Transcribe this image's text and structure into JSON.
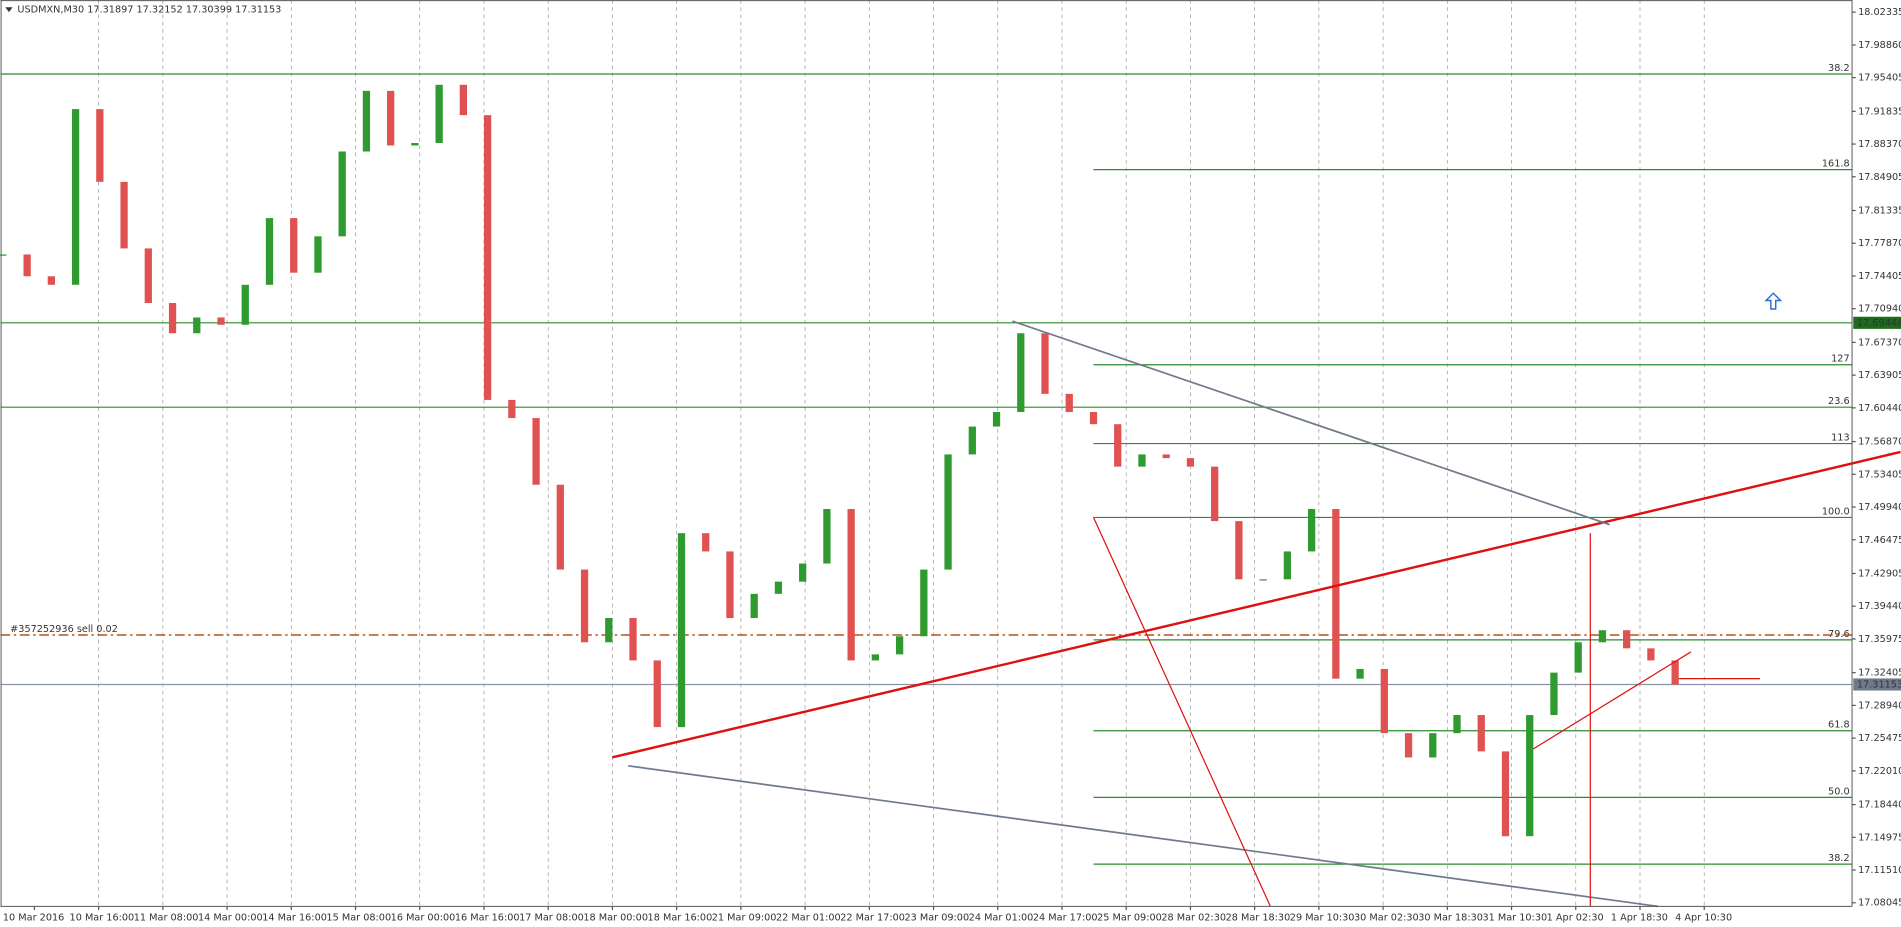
{
  "chart_data": {
    "type": "candlestick",
    "title": "USDMXN,M30  17.31897 17.32152 17.30399 17.31153",
    "up_color": "#2f9a2f",
    "down_color": "#e05252",
    "values": [
      17.7668,
      17.7437,
      17.7347,
      17.9207,
      17.8437,
      17.7732,
      17.7154,
      17.6834,
      17.7001,
      17.6924,
      17.7347,
      17.8053,
      17.7475,
      17.786,
      17.8758,
      17.94,
      17.8822,
      17.8848,
      17.9464,
      17.9143,
      17.6128,
      17.5936,
      17.523,
      17.4332,
      17.3562,
      17.3819,
      17.337,
      17.2664,
      17.4717,
      17.4524,
      17.3819,
      17.4075,
      17.4204,
      17.4396,
      17.4973,
      17.337,
      17.3434,
      17.3626,
      17.4332,
      17.5551,
      17.5846,
      17.6,
      17.6834,
      17.6192,
      17.6,
      17.5871,
      17.5422,
      17.5551,
      17.5512,
      17.5422,
      17.4845,
      17.4229,
      17.4229,
      17.4524,
      17.4973,
      17.3177,
      17.328,
      17.26,
      17.2343,
      17.26,
      17.2792,
      17.2407,
      17.1509,
      17.2792,
      17.3241,
      17.3562,
      17.369,
      17.3498,
      17.337,
      17.3115
    ],
    "x_axis_labels": [
      "10 Mar 2016",
      "10 Mar 16:00",
      "11 Mar 08:00",
      "14 Mar 00:00",
      "14 Mar 16:00",
      "15 Mar 08:00",
      "16 Mar 00:00",
      "16 Mar 16:00",
      "17 Mar 08:00",
      "18 Mar 00:00",
      "18 Mar 16:00",
      "21 Mar 09:00",
      "22 Mar 01:00",
      "22 Mar 17:00",
      "23 Mar 09:00",
      "24 Mar 01:00",
      "24 Mar 17:00",
      "25 Mar 09:00",
      "28 Mar 02:30",
      "28 Mar 18:30",
      "29 Mar 10:30",
      "30 Mar 02:30",
      "30 Mar 18:30",
      "31 Mar 10:30",
      "1 Apr 02:30",
      "1 Apr 18:30",
      "4 Apr 10:30"
    ],
    "ylim": [
      17.0766,
      18.0362
    ],
    "yticks": [
      18.02335,
      {
        "value": 17.9886,
        "label": "17.98860"
      },
      17.95405,
      17.91835,
      {
        "value": 17.8837,
        "label": "17.88370"
      },
      17.84905,
      17.81335,
      {
        "value": 17.7787,
        "label": "17.77870"
      },
      17.74405,
      {
        "value": 17.7094,
        "label": "17.70940"
      },
      {
        "value": 17.6737,
        "label": "17.67370"
      },
      17.63905,
      {
        "value": 17.6044,
        "label": "17.60440"
      },
      {
        "value": 17.5687,
        "label": "17.56870"
      },
      17.53405,
      {
        "value": 17.4994,
        "label": "17.49940"
      },
      17.46475,
      17.42905,
      {
        "value": 17.3944,
        "label": "17.39440"
      },
      17.35975,
      17.32405,
      {
        "value": 17.2894,
        "label": "17.28940"
      },
      17.25475,
      {
        "value": 17.2201,
        "label": "17.22010"
      },
      {
        "value": 17.1844,
        "label": "17.18440"
      },
      17.14975,
      {
        "value": 17.1151,
        "label": "17.11510"
      },
      17.08045
    ],
    "level_color": "#2e8b2e",
    "full_levels": [
      {
        "label": "38.2",
        "price": 17.9579
      },
      {
        "label": "23.6",
        "price": 17.6051
      }
    ],
    "marked_level": 17.69444,
    "fibo_levels": [
      {
        "label": "161.8",
        "price": 17.8566
      },
      {
        "label": "127",
        "price": 17.65
      },
      {
        "label": "113",
        "price": 17.5666
      },
      {
        "label": "100.0",
        "price": 17.4884
      },
      {
        "label": "79.6",
        "price": 17.3588
      },
      {
        "label": "61.8",
        "price": 17.2626
      },
      {
        "label": "50.0",
        "price": 17.192
      },
      {
        "label": "38.2",
        "price": 17.1214
      }
    ],
    "order": {
      "label": "#357252936 sell 0.02",
      "price": 17.3639,
      "color": "#b0551a"
    },
    "current_price": 17.31153
  }
}
